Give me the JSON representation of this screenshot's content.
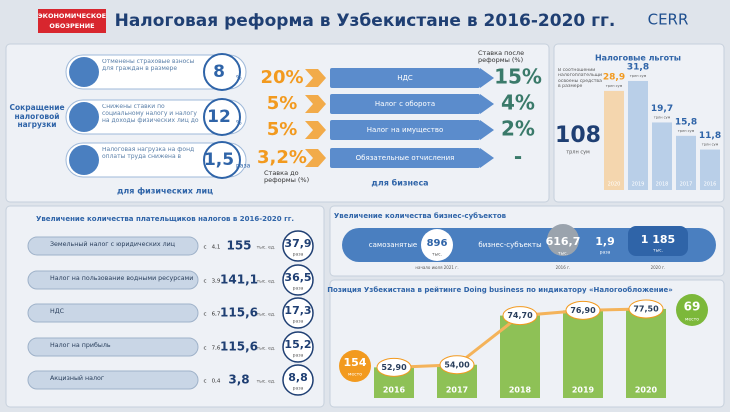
{
  "header": {
    "logo_left": [
      "ЭКОНОМИЧЕСКОЕ",
      "ОБОЗРЕНИЕ"
    ],
    "title": "Налоговая реформа в Узбекистане в 2016-2020 гг.",
    "logo_right": "CERR"
  },
  "individuals": {
    "heading": "Сокращение налоговой нагрузки",
    "footer": "для физических лиц",
    "items": [
      {
        "text": "Отменены страховые взносы для граждан в размере",
        "value": "8",
        "unit": "%"
      },
      {
        "text": "Снижены ставки по социальному налогу и налогу на доходы физических лиц до",
        "value": "12",
        "unit": "%"
      },
      {
        "text": "Налоговая нагрузка на фонд оплаты труда снижена в",
        "value": "1,5",
        "unit": "раза"
      }
    ]
  },
  "business": {
    "label_before": "Ставка до реформы (%)",
    "label_after": "Ставка после реформы (%)",
    "footer": "для бизнеса",
    "rows": [
      {
        "name": "НДС",
        "before": "20%",
        "after": "15%"
      },
      {
        "name": "Налог с оборота",
        "before": "5%",
        "after": "4%"
      },
      {
        "name": "Налог на имущество",
        "before": "5%",
        "after": "2%"
      },
      {
        "name": "Обязательные отчисления",
        "before": "3,2%",
        "after": "-"
      }
    ]
  },
  "benefits": {
    "title": "Налоговые льготы",
    "total_text": "В соотношении налогоплательщиков освоены средства в размере",
    "total": "108",
    "unit": "трлн сум",
    "categories": [
      "2020",
      "2019",
      "2018",
      "2017",
      "2016"
    ],
    "values": [
      28.9,
      31.8,
      19.7,
      15.8,
      11.8
    ],
    "value_labels": [
      "28,9",
      "31,8",
      "19,7",
      "15,8",
      "11,8"
    ],
    "ylim": [
      0,
      35
    ]
  },
  "taxpayers": {
    "title": "Увеличение количества плательщиков налогов в 2016-2020 гг.",
    "prefix": "с",
    "unit": "тыс. ед.",
    "factor_unit": "раза",
    "rows": [
      {
        "name": "Земельный налог с юридических лиц",
        "from": "4,1",
        "to": "155",
        "factor": "37,9"
      },
      {
        "name": "Налог на пользование водными ресурсами",
        "from": "3,9",
        "to": "141,1",
        "factor": "36,5"
      },
      {
        "name": "НДС",
        "from": "6,7",
        "to": "115,6",
        "factor": "17,3"
      },
      {
        "name": "Налог на прибыль",
        "from": "7,6",
        "to": "115,6",
        "factor": "15,2"
      },
      {
        "name": "Акцизный налог",
        "from": "0,4",
        "to": "3,8",
        "factor": "8,8"
      }
    ]
  },
  "entities": {
    "title": "Увеличение количества бизнес-субъектов",
    "self_label": "самозанятые",
    "self_value": "896",
    "unit": "тыс.",
    "self_note": "начало июля 2021 г.",
    "biz_label": "бизнес-субъекты",
    "v2016": "616,7",
    "y2016": "2016 г.",
    "factor": "1,9",
    "factor_unit": "раза",
    "v2020": "1 185",
    "y2020": "2020 г."
  },
  "ranking": {
    "title": "Позиция Узбекистана в рейтинге Doing business по индикатору «Налогообложение»",
    "years": [
      "2016",
      "2017",
      "2018",
      "2019",
      "2020"
    ],
    "scores": [
      52.9,
      54.0,
      74.7,
      76.9,
      77.5
    ],
    "score_labels": [
      "52,90",
      "54,00",
      "74,70",
      "76,90",
      "77,50"
    ],
    "ylim": [
      40,
      80
    ],
    "place_start": "154",
    "place_end": "69",
    "place_unit": "место"
  }
}
